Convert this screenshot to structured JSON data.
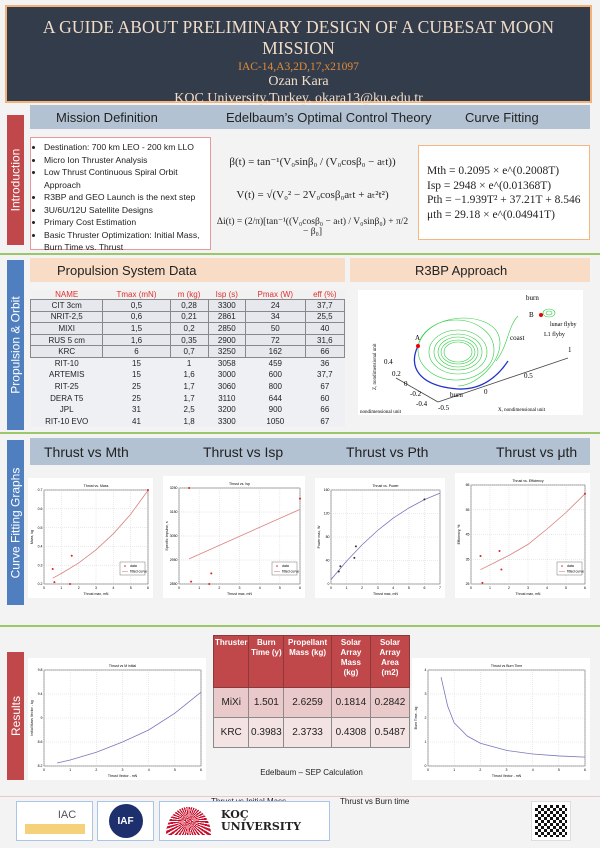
{
  "header": {
    "title": "A GUIDE ABOUT PRELIMINARY DESIGN OF A CUBESAT MOON MISSION",
    "paper_id": "IAC-14,A3,2D,17,x21097",
    "author": "Ozan Kara",
    "affiliation": "KOC University,Turkey, okara13@ku.edu.tr"
  },
  "colors": {
    "header_bg": "#333c4a",
    "accent_orange": "#e08a3a",
    "red": "#c0474a",
    "blue": "#4f7fbf",
    "green": "#9cc66a"
  },
  "intro": {
    "side_label": "Introduction",
    "headings": [
      "Mission Definition",
      "Edelbaum’s Optimal Control Theory",
      "Curve Fitting"
    ],
    "mission_items": [
      "Destination: 700 km LEO - 200 km LLO",
      "Micro Ion Thruster Analysis",
      "Low Thrust Continuous Spiral Orbit Approach",
      "R3BP and GEO Launch is the next step",
      "3U/6U/12U Satellite Designs",
      "Primary Cost Estimation",
      "Basic Thruster Optimization: Initial Mass, Burn Time vs. Thrust"
    ],
    "equations": [
      "β(t) = tan⁻¹(V₀sinβ₀ / (V₀cosβ₀ − aₜt))",
      "V(t) = √(V₀² − 2V₀cosβ₀aₜt + aₜ²t²)",
      "Δi(t) = (2/π)[tan⁻¹((V₀cosβ₀ − aₜt) / V₀sinβ₀) + π/2 − β₀]"
    ],
    "fits": [
      "Mth = 0.2095 × e^(0.2008T)",
      "Isp = 2948 × e^(0.01368T)",
      "Pth = −1.939T² + 37.21T + 8.546",
      "μth = 29.18 × e^(0.04941T)"
    ]
  },
  "propulsion": {
    "side_label": "Propulsion & Orbit",
    "table_title": "Propulsion System Data",
    "r3bp_title": "R3BP Approach",
    "columns": [
      "NAME",
      "Tmax (mN)",
      "m (kg)",
      "Isp (s)",
      "Pmax (W)",
      "eff (%)"
    ],
    "rows": [
      [
        "CIT 3cm",
        "0,5",
        "0,28",
        "3300",
        "24",
        "37,7"
      ],
      [
        "NRIT-2,5",
        "0,6",
        "0,21",
        "2861",
        "34",
        "25,5"
      ],
      [
        "MIXI",
        "1,5",
        "0,2",
        "2850",
        "50",
        "40"
      ],
      [
        "RUS 5 cm",
        "1,6",
        "0,35",
        "2900",
        "72",
        "31,6"
      ],
      [
        "KRC",
        "6",
        "0,7",
        "3250",
        "162",
        "66"
      ],
      [
        "RIT-10",
        "15",
        "1",
        "3058",
        "459",
        "36"
      ],
      [
        "ARTEMIS",
        "15",
        "1,6",
        "3000",
        "600",
        "37,7"
      ],
      [
        "RIT-25",
        "25",
        "1,7",
        "3060",
        "800",
        "67"
      ],
      [
        "DERA T5",
        "25",
        "1,7",
        "3110",
        "644",
        "60"
      ],
      [
        "JPL",
        "31",
        "2,5",
        "3200",
        "900",
        "66"
      ],
      [
        "RIT-10 EVO",
        "41",
        "1,8",
        "3300",
        "1050",
        "67"
      ]
    ],
    "r3bp_labels": {
      "burn_top": "burn",
      "lunar": "lunar flyby",
      "l1": "L1 flyby",
      "coast": "coast",
      "a": "A",
      "b": "B",
      "burn_bottom": "burn",
      "zaxis": "Z, nondimensional unit",
      "xaxis": "X, nondimensional unit",
      "yaxis": "nondimensional unit",
      "ticks": [
        "0.4",
        "0.2",
        "0",
        "-0.2",
        "-0.4",
        "-0.5",
        "0",
        "0.5",
        "1"
      ]
    }
  },
  "graphs": {
    "side_label": "Curve Fitting Graphs",
    "headings": [
      "Thrust vs Mth",
      "Thrust vs Isp",
      "Thrust vs Pth",
      "Thrust vs μth"
    ]
  },
  "results": {
    "side_label": "Results",
    "columns": [
      "Thruster",
      "Burn Time (y)",
      "Propellant Mass (kg)",
      "Solar Array Mass (kg)",
      "Solar Array Area (m2)"
    ],
    "rows": [
      [
        "MiXi",
        "1.501",
        "2.6259",
        "0.1814",
        "0.2842"
      ],
      [
        "KRC",
        "0.3983",
        "2.3733",
        "0.4308",
        "0.5487"
      ]
    ],
    "caption": "Edelbaum – SEP Calculation",
    "left_caption": "Thrust vs Initial Mass",
    "right_caption": "Thrust vs Burn time"
  },
  "footer": {
    "logos": [
      "IAC",
      "IAF",
      "KOÇ UNIVERSITY"
    ],
    "qr": "qr-code"
  },
  "chart_data": [
    {
      "type": "scatter",
      "title": "Thrust vs. Mass",
      "xlabel": "Thrust max, mN",
      "ylabel": "Mass, kg",
      "xlim": [
        0,
        6
      ],
      "ylim": [
        0.2,
        0.7
      ],
      "xticks": [
        "0",
        "1",
        "2",
        "3",
        "4",
        "5",
        "6"
      ],
      "yticks": [
        "0.2",
        "0.3",
        "0.4",
        "0.5",
        "0.6",
        "0.7"
      ],
      "legend": [
        "data",
        "fitted curve"
      ],
      "points": [
        [
          0.5,
          0.28
        ],
        [
          0.6,
          0.21
        ],
        [
          1.5,
          0.2
        ],
        [
          1.6,
          0.35
        ],
        [
          6,
          0.7
        ]
      ],
      "curve": [
        [
          0.5,
          0.231
        ],
        [
          1,
          0.256
        ],
        [
          2,
          0.312
        ],
        [
          3,
          0.382
        ],
        [
          4,
          0.467
        ],
        [
          5,
          0.571
        ],
        [
          6,
          0.698
        ]
      ]
    },
    {
      "type": "scatter",
      "title": "Thrust vs. Isp",
      "xlabel": "Thrust max, mN",
      "ylabel": "Specific Impulse, s",
      "xlim": [
        0,
        6
      ],
      "ylim": [
        2850,
        3300
      ],
      "xticks": [
        "0",
        "1",
        "2",
        "3",
        "4",
        "5",
        "6"
      ],
      "yticks": [
        "2850",
        "2950",
        "3050",
        "3150",
        "3250"
      ],
      "legend": [
        "data",
        "fitted curve"
      ],
      "points": [
        [
          0.5,
          3300
        ],
        [
          0.6,
          2861
        ],
        [
          1.5,
          2850
        ],
        [
          1.6,
          2900
        ],
        [
          6,
          3250
        ]
      ],
      "curve": [
        [
          0.5,
          2968
        ],
        [
          6,
          3200
        ]
      ]
    },
    {
      "type": "scatter",
      "title": "Thrust vs. Power",
      "xlabel": "Thrust max, mN",
      "ylabel": "Power max, W",
      "xlim": [
        0,
        7
      ],
      "ylim": [
        0,
        180
      ],
      "xticks": [
        "0",
        "1",
        "2",
        "3",
        "4",
        "5",
        "6",
        "7"
      ],
      "yticks": [
        "0",
        "40",
        "80",
        "120",
        "160"
      ],
      "legend": [],
      "points": [
        [
          0.5,
          24
        ],
        [
          0.6,
          34
        ],
        [
          1.5,
          50
        ],
        [
          1.6,
          72
        ],
        [
          6,
          162
        ]
      ],
      "curve": [
        [
          0,
          8.5
        ],
        [
          1,
          43.8
        ],
        [
          2,
          75.2
        ],
        [
          3,
          102.7
        ],
        [
          4,
          126.3
        ],
        [
          5,
          145.6
        ],
        [
          6,
          161.6
        ],
        [
          7,
          174
        ]
      ]
    },
    {
      "type": "scatter",
      "title": "Thrust vs. Efficiency",
      "xlabel": "Thrust max, mN",
      "ylabel": "Efficiency, %",
      "xlim": [
        0,
        6
      ],
      "ylim": [
        25,
        70
      ],
      "xticks": [
        "0",
        "1",
        "2",
        "3",
        "4",
        "5",
        "6"
      ],
      "yticks": [
        "25",
        "35",
        "45",
        "55",
        "65"
      ],
      "legend": [
        "data",
        "fitted curve"
      ],
      "points": [
        [
          0.5,
          37.7
        ],
        [
          0.6,
          25.5
        ],
        [
          1.5,
          40
        ],
        [
          1.6,
          31.6
        ],
        [
          6,
          66
        ]
      ],
      "curve": [
        [
          0.5,
          31.5
        ],
        [
          2,
          38
        ],
        [
          3,
          43
        ],
        [
          4,
          50
        ],
        [
          5,
          57.5
        ],
        [
          6,
          66
        ]
      ]
    },
    {
      "type": "line",
      "title": "Thrust vs M initial",
      "xlabel": "Thrust Vector - mN",
      "ylabel": "Initial Mass Vector - kg",
      "xlim": [
        0,
        6
      ],
      "ylim": [
        8.2,
        9.8
      ],
      "xticks": [
        "0",
        "1",
        "2",
        "3",
        "4",
        "5",
        "6"
      ],
      "yticks": [
        "8.2",
        "8.6",
        "9",
        "9.4",
        "9.8"
      ],
      "legend": [],
      "points": [],
      "curve": [
        [
          0.5,
          8.25
        ],
        [
          1,
          8.3
        ],
        [
          2,
          8.43
        ],
        [
          3,
          8.6
        ],
        [
          4,
          8.8
        ],
        [
          5,
          9.08
        ],
        [
          6,
          9.43
        ]
      ]
    },
    {
      "type": "line",
      "title": "Thrust vs Burn Time",
      "xlabel": "Thrust Vector - mN",
      "ylabel": "Burn Time - kg",
      "xlim": [
        0,
        6
      ],
      "ylim": [
        0,
        4
      ],
      "xticks": [
        "0",
        "1",
        "2",
        "3",
        "4",
        "5",
        "6"
      ],
      "yticks": [
        "0",
        "1",
        "2",
        "3",
        "4"
      ],
      "legend": [],
      "points": [],
      "curve": [
        [
          0.5,
          3.7
        ],
        [
          0.75,
          2.5
        ],
        [
          1,
          1.8
        ],
        [
          1.5,
          1.25
        ],
        [
          2,
          0.95
        ],
        [
          3,
          0.65
        ],
        [
          4,
          0.5
        ],
        [
          5,
          0.42
        ],
        [
          6,
          0.37
        ]
      ]
    }
  ]
}
